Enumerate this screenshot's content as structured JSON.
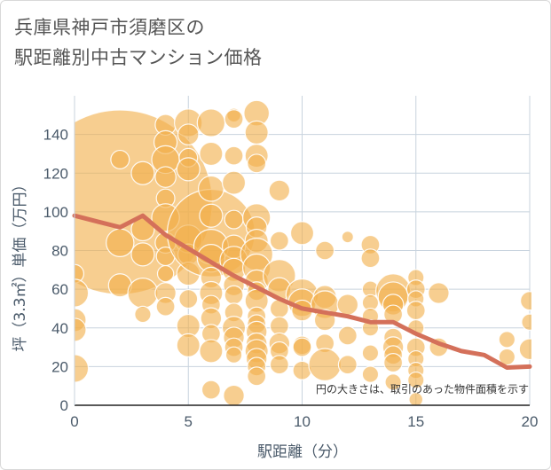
{
  "title_lines": [
    "兵庫県神戸市須磨区の",
    "駅距離別中古マンション価格"
  ],
  "chart_data": {
    "type": "scatter",
    "xlabel": "駅距離（分）",
    "ylabel": "坪（3.3㎡）単価（万円）",
    "xlim": [
      0,
      20
    ],
    "ylim": [
      0,
      160
    ],
    "xticks": [
      0,
      5,
      10,
      15,
      20
    ],
    "yticks": [
      0,
      20,
      40,
      60,
      80,
      100,
      120,
      140
    ],
    "grid": true,
    "annotation": "円の大きさは、取引のあった物件面積を示す",
    "colors": {
      "bubble": "#f2b04c",
      "line": "#d4705a",
      "grid": "#c8d3de"
    },
    "bubbles": [
      {
        "x": 2,
        "y": 105,
        "r": 8
      },
      {
        "x": 0,
        "y": 68,
        "r": 0.8
      },
      {
        "x": 0,
        "y": 58,
        "r": 1.2
      },
      {
        "x": 0,
        "y": 44,
        "r": 1
      },
      {
        "x": 0,
        "y": 39,
        "r": 1
      },
      {
        "x": 0,
        "y": 19,
        "r": 1.2
      },
      {
        "x": 2,
        "y": 127,
        "r": 0.8
      },
      {
        "x": 2,
        "y": 84,
        "r": 1.2
      },
      {
        "x": 2,
        "y": 62,
        "r": 1
      },
      {
        "x": 3,
        "y": 120,
        "r": 1
      },
      {
        "x": 3,
        "y": 91,
        "r": 1
      },
      {
        "x": 3,
        "y": 78,
        "r": 1
      },
      {
        "x": 3,
        "y": 58,
        "r": 1.3
      },
      {
        "x": 3,
        "y": 47,
        "r": 0.7
      },
      {
        "x": 4,
        "y": 145,
        "r": 0.9
      },
      {
        "x": 4,
        "y": 136,
        "r": 1
      },
      {
        "x": 4,
        "y": 127,
        "r": 1.2
      },
      {
        "x": 4,
        "y": 118,
        "r": 0.9
      },
      {
        "x": 4,
        "y": 107,
        "r": 0.8
      },
      {
        "x": 4,
        "y": 97,
        "r": 1.2
      },
      {
        "x": 4,
        "y": 84,
        "r": 0.9
      },
      {
        "x": 4,
        "y": 77,
        "r": 0.8
      },
      {
        "x": 4,
        "y": 68,
        "r": 0.7
      },
      {
        "x": 4,
        "y": 58,
        "r": 0.9
      },
      {
        "x": 4,
        "y": 51,
        "r": 0.8
      },
      {
        "x": 5,
        "y": 146,
        "r": 1.2
      },
      {
        "x": 5,
        "y": 140,
        "r": 0.9
      },
      {
        "x": 5,
        "y": 128,
        "r": 0.8
      },
      {
        "x": 5,
        "y": 122,
        "r": 1
      },
      {
        "x": 5,
        "y": 86,
        "r": 1.2
      },
      {
        "x": 5,
        "y": 78,
        "r": 0.9
      },
      {
        "x": 5,
        "y": 68,
        "r": 1
      },
      {
        "x": 5,
        "y": 55,
        "r": 0.8
      },
      {
        "x": 5,
        "y": 41,
        "r": 1
      },
      {
        "x": 5,
        "y": 31,
        "r": 1
      },
      {
        "x": 6,
        "y": 89,
        "r": 3.8
      },
      {
        "x": 6,
        "y": 82,
        "r": 1.5
      },
      {
        "x": 6,
        "y": 76,
        "r": 1.2
      },
      {
        "x": 6,
        "y": 146,
        "r": 1.2
      },
      {
        "x": 6,
        "y": 130,
        "r": 1
      },
      {
        "x": 6,
        "y": 112,
        "r": 1.1
      },
      {
        "x": 6,
        "y": 98,
        "r": 1
      },
      {
        "x": 6,
        "y": 66,
        "r": 0.9
      },
      {
        "x": 6,
        "y": 58,
        "r": 1
      },
      {
        "x": 6,
        "y": 52,
        "r": 0.8
      },
      {
        "x": 6,
        "y": 45,
        "r": 0.9
      },
      {
        "x": 6,
        "y": 37,
        "r": 0.8
      },
      {
        "x": 6,
        "y": 28,
        "r": 1
      },
      {
        "x": 6,
        "y": 8,
        "r": 0.8
      },
      {
        "x": 7,
        "y": 150,
        "r": 0.6
      },
      {
        "x": 7,
        "y": 148,
        "r": 0.8
      },
      {
        "x": 7,
        "y": 129,
        "r": 0.8
      },
      {
        "x": 7,
        "y": 115,
        "r": 1
      },
      {
        "x": 7,
        "y": 96,
        "r": 0.8
      },
      {
        "x": 7,
        "y": 82,
        "r": 1
      },
      {
        "x": 7,
        "y": 75,
        "r": 1.2
      },
      {
        "x": 7,
        "y": 70,
        "r": 1
      },
      {
        "x": 7,
        "y": 62,
        "r": 0.9
      },
      {
        "x": 7,
        "y": 57,
        "r": 0.8
      },
      {
        "x": 7,
        "y": 48,
        "r": 0.8
      },
      {
        "x": 7,
        "y": 40,
        "r": 1
      },
      {
        "x": 7,
        "y": 35,
        "r": 0.9
      },
      {
        "x": 7,
        "y": 30,
        "r": 0.8
      },
      {
        "x": 7,
        "y": 26,
        "r": 0.7
      },
      {
        "x": 7,
        "y": 5,
        "r": 0.9
      },
      {
        "x": 8,
        "y": 151,
        "r": 1.1
      },
      {
        "x": 8,
        "y": 141,
        "r": 1
      },
      {
        "x": 8,
        "y": 129,
        "r": 1
      },
      {
        "x": 8,
        "y": 125,
        "r": 0.8
      },
      {
        "x": 8,
        "y": 97,
        "r": 1.2
      },
      {
        "x": 8,
        "y": 92,
        "r": 0.9
      },
      {
        "x": 8,
        "y": 85,
        "r": 1
      },
      {
        "x": 8,
        "y": 78,
        "r": 1.4
      },
      {
        "x": 8,
        "y": 71,
        "r": 1.2
      },
      {
        "x": 8,
        "y": 64,
        "r": 1
      },
      {
        "x": 8,
        "y": 59,
        "r": 0.8
      },
      {
        "x": 8,
        "y": 54,
        "r": 1
      },
      {
        "x": 8,
        "y": 46,
        "r": 0.8
      },
      {
        "x": 8,
        "y": 42,
        "r": 0.8
      },
      {
        "x": 8,
        "y": 38,
        "r": 0.9
      },
      {
        "x": 8,
        "y": 32,
        "r": 0.9
      },
      {
        "x": 8,
        "y": 28,
        "r": 1
      },
      {
        "x": 8,
        "y": 24,
        "r": 0.9
      },
      {
        "x": 8,
        "y": 20,
        "r": 0.8
      },
      {
        "x": 8,
        "y": 15,
        "r": 0.8
      },
      {
        "x": 9,
        "y": 111,
        "r": 0.9
      },
      {
        "x": 9,
        "y": 85,
        "r": 0.8
      },
      {
        "x": 9,
        "y": 67,
        "r": 1.4
      },
      {
        "x": 9,
        "y": 60,
        "r": 1
      },
      {
        "x": 9,
        "y": 50,
        "r": 0.8
      },
      {
        "x": 9,
        "y": 41,
        "r": 0.8
      },
      {
        "x": 9,
        "y": 32,
        "r": 0.9
      },
      {
        "x": 9,
        "y": 28,
        "r": 0.8
      },
      {
        "x": 9,
        "y": 21,
        "r": 0.8
      },
      {
        "x": 10,
        "y": 89,
        "r": 1
      },
      {
        "x": 10,
        "y": 57,
        "r": 1.4
      },
      {
        "x": 10,
        "y": 53,
        "r": 1.2
      },
      {
        "x": 10,
        "y": 49,
        "r": 0.9
      },
      {
        "x": 10,
        "y": 31,
        "r": 0.8
      },
      {
        "x": 10,
        "y": 30,
        "r": 0.8
      },
      {
        "x": 10,
        "y": 18,
        "r": 0.8
      },
      {
        "x": 11,
        "y": 80,
        "r": 0.8
      },
      {
        "x": 11,
        "y": 56,
        "r": 1
      },
      {
        "x": 11,
        "y": 52,
        "r": 1.2
      },
      {
        "x": 11,
        "y": 44,
        "r": 0.9
      },
      {
        "x": 11,
        "y": 32,
        "r": 0.8
      },
      {
        "x": 11,
        "y": 21,
        "r": 1.4
      },
      {
        "x": 12,
        "y": 87,
        "r": 0.5
      },
      {
        "x": 12,
        "y": 52,
        "r": 0.9
      },
      {
        "x": 12,
        "y": 36,
        "r": 0.8
      },
      {
        "x": 12,
        "y": 21,
        "r": 0.8
      },
      {
        "x": 13,
        "y": 83,
        "r": 0.8
      },
      {
        "x": 13,
        "y": 76,
        "r": 0.8
      },
      {
        "x": 13,
        "y": 60,
        "r": 0.7
      },
      {
        "x": 13,
        "y": 53,
        "r": 0.7
      },
      {
        "x": 13,
        "y": 46,
        "r": 0.7
      },
      {
        "x": 13,
        "y": 40,
        "r": 0.7
      },
      {
        "x": 13,
        "y": 27,
        "r": 0.7
      },
      {
        "x": 13,
        "y": 16,
        "r": 0.7
      },
      {
        "x": 14,
        "y": 59,
        "r": 1.5
      },
      {
        "x": 14,
        "y": 56,
        "r": 1.3
      },
      {
        "x": 14,
        "y": 52,
        "r": 0.9
      },
      {
        "x": 14,
        "y": 47,
        "r": 0.8
      },
      {
        "x": 14,
        "y": 35,
        "r": 0.8
      },
      {
        "x": 14,
        "y": 30,
        "r": 0.9
      },
      {
        "x": 14,
        "y": 26,
        "r": 0.8
      },
      {
        "x": 14,
        "y": 22,
        "r": 0.8
      },
      {
        "x": 14,
        "y": 12,
        "r": 0.7
      },
      {
        "x": 15,
        "y": 66,
        "r": 0.7
      },
      {
        "x": 15,
        "y": 60,
        "r": 0.8
      },
      {
        "x": 15,
        "y": 55,
        "r": 0.7
      },
      {
        "x": 15,
        "y": 49,
        "r": 0.8
      },
      {
        "x": 15,
        "y": 40,
        "r": 0.7
      },
      {
        "x": 15,
        "y": 30,
        "r": 0.8
      },
      {
        "x": 15,
        "y": 24,
        "r": 0.7
      },
      {
        "x": 15,
        "y": 18,
        "r": 0.7
      },
      {
        "x": 15,
        "y": 13,
        "r": 0.7
      },
      {
        "x": 15,
        "y": 3,
        "r": 0.6
      },
      {
        "x": 16,
        "y": 58,
        "r": 0.9
      },
      {
        "x": 16,
        "y": 30,
        "r": 0.8
      },
      {
        "x": 19,
        "y": 34,
        "r": 0.7
      },
      {
        "x": 19,
        "y": 25,
        "r": 0.7
      },
      {
        "x": 20,
        "y": 54,
        "r": 0.8
      },
      {
        "x": 20,
        "y": 43,
        "r": 0.7
      },
      {
        "x": 20,
        "y": 29,
        "r": 0.9
      }
    ],
    "series": [
      {
        "type": "line",
        "x": [
          0,
          1,
          2,
          3,
          4,
          5,
          6,
          7,
          8,
          9,
          10,
          11,
          12,
          13,
          14,
          15,
          16,
          17,
          18,
          19,
          20
        ],
        "values": [
          98,
          95,
          92,
          98,
          88,
          81,
          74,
          67,
          61,
          55,
          50,
          48,
          46,
          43,
          43,
          37,
          32,
          28,
          26,
          19.5,
          20
        ]
      }
    ]
  }
}
